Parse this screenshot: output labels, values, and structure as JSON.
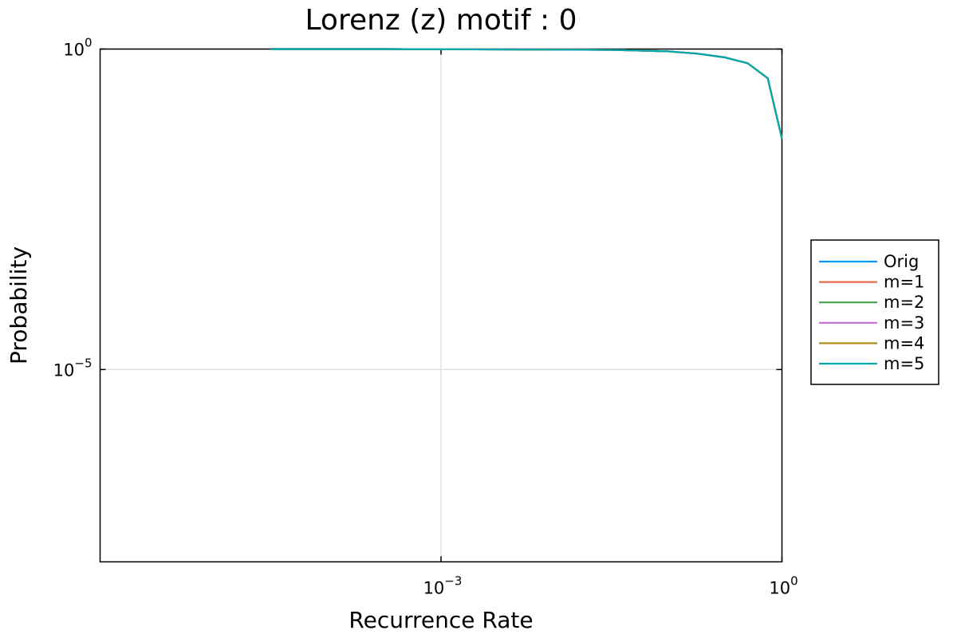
{
  "chart_data": {
    "type": "line",
    "title": "Lorenz (z) motif : 0",
    "xlabel": "Recurrence Rate",
    "ylabel": "Probability",
    "x_scale": "log10",
    "y_scale": "log10",
    "xlim": [
      1e-06,
      1
    ],
    "ylim": [
      1e-08,
      1
    ],
    "x_ticks": [
      {
        "value": 0.001,
        "base": "10",
        "exp": "−3"
      },
      {
        "value": 1,
        "base": "10",
        "exp": "0"
      }
    ],
    "y_ticks": [
      {
        "value": 1e-05,
        "base": "10",
        "exp": "−5"
      },
      {
        "value": 1,
        "base": "10",
        "exp": "0"
      }
    ],
    "grid": true,
    "legend_position": "outer-right",
    "series": [
      {
        "name": "Orig",
        "color": "#009AFA",
        "x": [
          3.16e-05,
          0.000316,
          0.0316,
          0.1,
          0.178,
          0.316,
          0.5,
          0.75,
          1.0
        ],
        "y": [
          1.0,
          1.0,
          0.97,
          0.92,
          0.85,
          0.74,
          0.6,
          0.35,
          0.04
        ]
      },
      {
        "name": "m=1",
        "color": "#E36F47",
        "x": [
          3.16e-05,
          0.000316,
          0.0316,
          0.1,
          0.178,
          0.316,
          0.5,
          0.75,
          1.0
        ],
        "y": [
          1.0,
          1.0,
          0.97,
          0.92,
          0.85,
          0.74,
          0.6,
          0.35,
          0.04
        ]
      },
      {
        "name": "m=2",
        "color": "#3EA44E",
        "x": [
          3.16e-05,
          0.000316,
          0.0316,
          0.1,
          0.178,
          0.316,
          0.5,
          0.75,
          1.0
        ],
        "y": [
          1.0,
          1.0,
          0.97,
          0.92,
          0.85,
          0.74,
          0.6,
          0.35,
          0.04
        ]
      },
      {
        "name": "m=3",
        "color": "#C371D2",
        "x": [
          3.16e-05,
          0.000316,
          0.0316,
          0.1,
          0.178,
          0.316,
          0.5,
          0.75,
          1.0
        ],
        "y": [
          1.0,
          1.0,
          0.97,
          0.92,
          0.85,
          0.74,
          0.6,
          0.35,
          0.04
        ]
      },
      {
        "name": "m=4",
        "color": "#AC8E18",
        "x": [
          3.16e-05,
          0.000316,
          0.0316,
          0.1,
          0.178,
          0.316,
          0.5,
          0.75,
          1.0
        ],
        "y": [
          1.0,
          1.0,
          0.97,
          0.92,
          0.85,
          0.74,
          0.6,
          0.35,
          0.04
        ]
      },
      {
        "name": "m=5",
        "color": "#00A9AD",
        "x": [
          3.16e-05,
          0.000316,
          0.0316,
          0.1,
          0.178,
          0.316,
          0.5,
          0.75,
          1.0
        ],
        "y": [
          1.0,
          1.0,
          0.97,
          0.92,
          0.85,
          0.74,
          0.6,
          0.35,
          0.04
        ]
      }
    ]
  }
}
